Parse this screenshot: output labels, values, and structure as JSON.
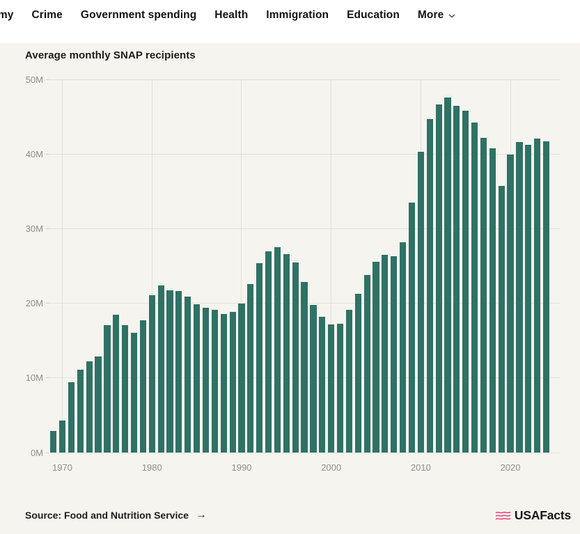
{
  "nav": {
    "items": [
      {
        "label": "Economy"
      },
      {
        "label": "Crime"
      },
      {
        "label": "Government spending"
      },
      {
        "label": "Health"
      },
      {
        "label": "Immigration"
      },
      {
        "label": "Education"
      },
      {
        "label": "More",
        "has_dropdown": true
      }
    ]
  },
  "chart_data": {
    "type": "bar",
    "title": "Average monthly SNAP recipients",
    "unit": "millions of recipients",
    "x": [
      1969,
      1970,
      1971,
      1972,
      1973,
      1974,
      1975,
      1976,
      1977,
      1978,
      1979,
      1980,
      1981,
      1982,
      1983,
      1984,
      1985,
      1986,
      1987,
      1988,
      1989,
      1990,
      1991,
      1992,
      1993,
      1994,
      1995,
      1996,
      1997,
      1998,
      1999,
      2000,
      2001,
      2002,
      2003,
      2004,
      2005,
      2006,
      2007,
      2008,
      2009,
      2010,
      2011,
      2012,
      2013,
      2014,
      2015,
      2016,
      2017,
      2018,
      2019,
      2020,
      2021,
      2022,
      2023,
      2024
    ],
    "values": [
      2.9,
      4.3,
      9.4,
      11.1,
      12.2,
      12.9,
      17.1,
      18.5,
      17.1,
      16.0,
      17.7,
      21.1,
      22.4,
      21.7,
      21.6,
      20.9,
      19.9,
      19.4,
      19.1,
      18.6,
      18.8,
      20.0,
      22.6,
      25.4,
      27.0,
      27.5,
      26.6,
      25.5,
      22.9,
      19.8,
      18.2,
      17.2,
      17.3,
      19.1,
      21.3,
      23.8,
      25.6,
      26.5,
      26.3,
      28.2,
      33.5,
      40.3,
      44.7,
      46.6,
      47.6,
      46.5,
      45.8,
      44.2,
      42.2,
      40.8,
      35.7,
      39.9,
      41.6,
      41.2,
      42.1,
      41.7
    ],
    "ylim": [
      0,
      50
    ],
    "y_tick_labels": [
      "0M",
      "10M",
      "20M",
      "30M",
      "40M",
      "50M"
    ],
    "x_tick_labels": [
      "1970",
      "1980",
      "1990",
      "2000",
      "2010",
      "2020"
    ],
    "grid": true,
    "legend": false,
    "bar_color": "#2f7265"
  },
  "footer": {
    "source_label": "Source: Food and Nutrition Service",
    "arrow_icon": "→",
    "brand": "USAFacts"
  },
  "colors": {
    "background": "#f5f4ef",
    "nav_background": "#ffffff",
    "bar": "#2f7265",
    "gridline": "#e3e3dc",
    "axis_text": "#8f8f89",
    "text": "#1c1c1b",
    "brand_pink": "#ee3c78"
  }
}
